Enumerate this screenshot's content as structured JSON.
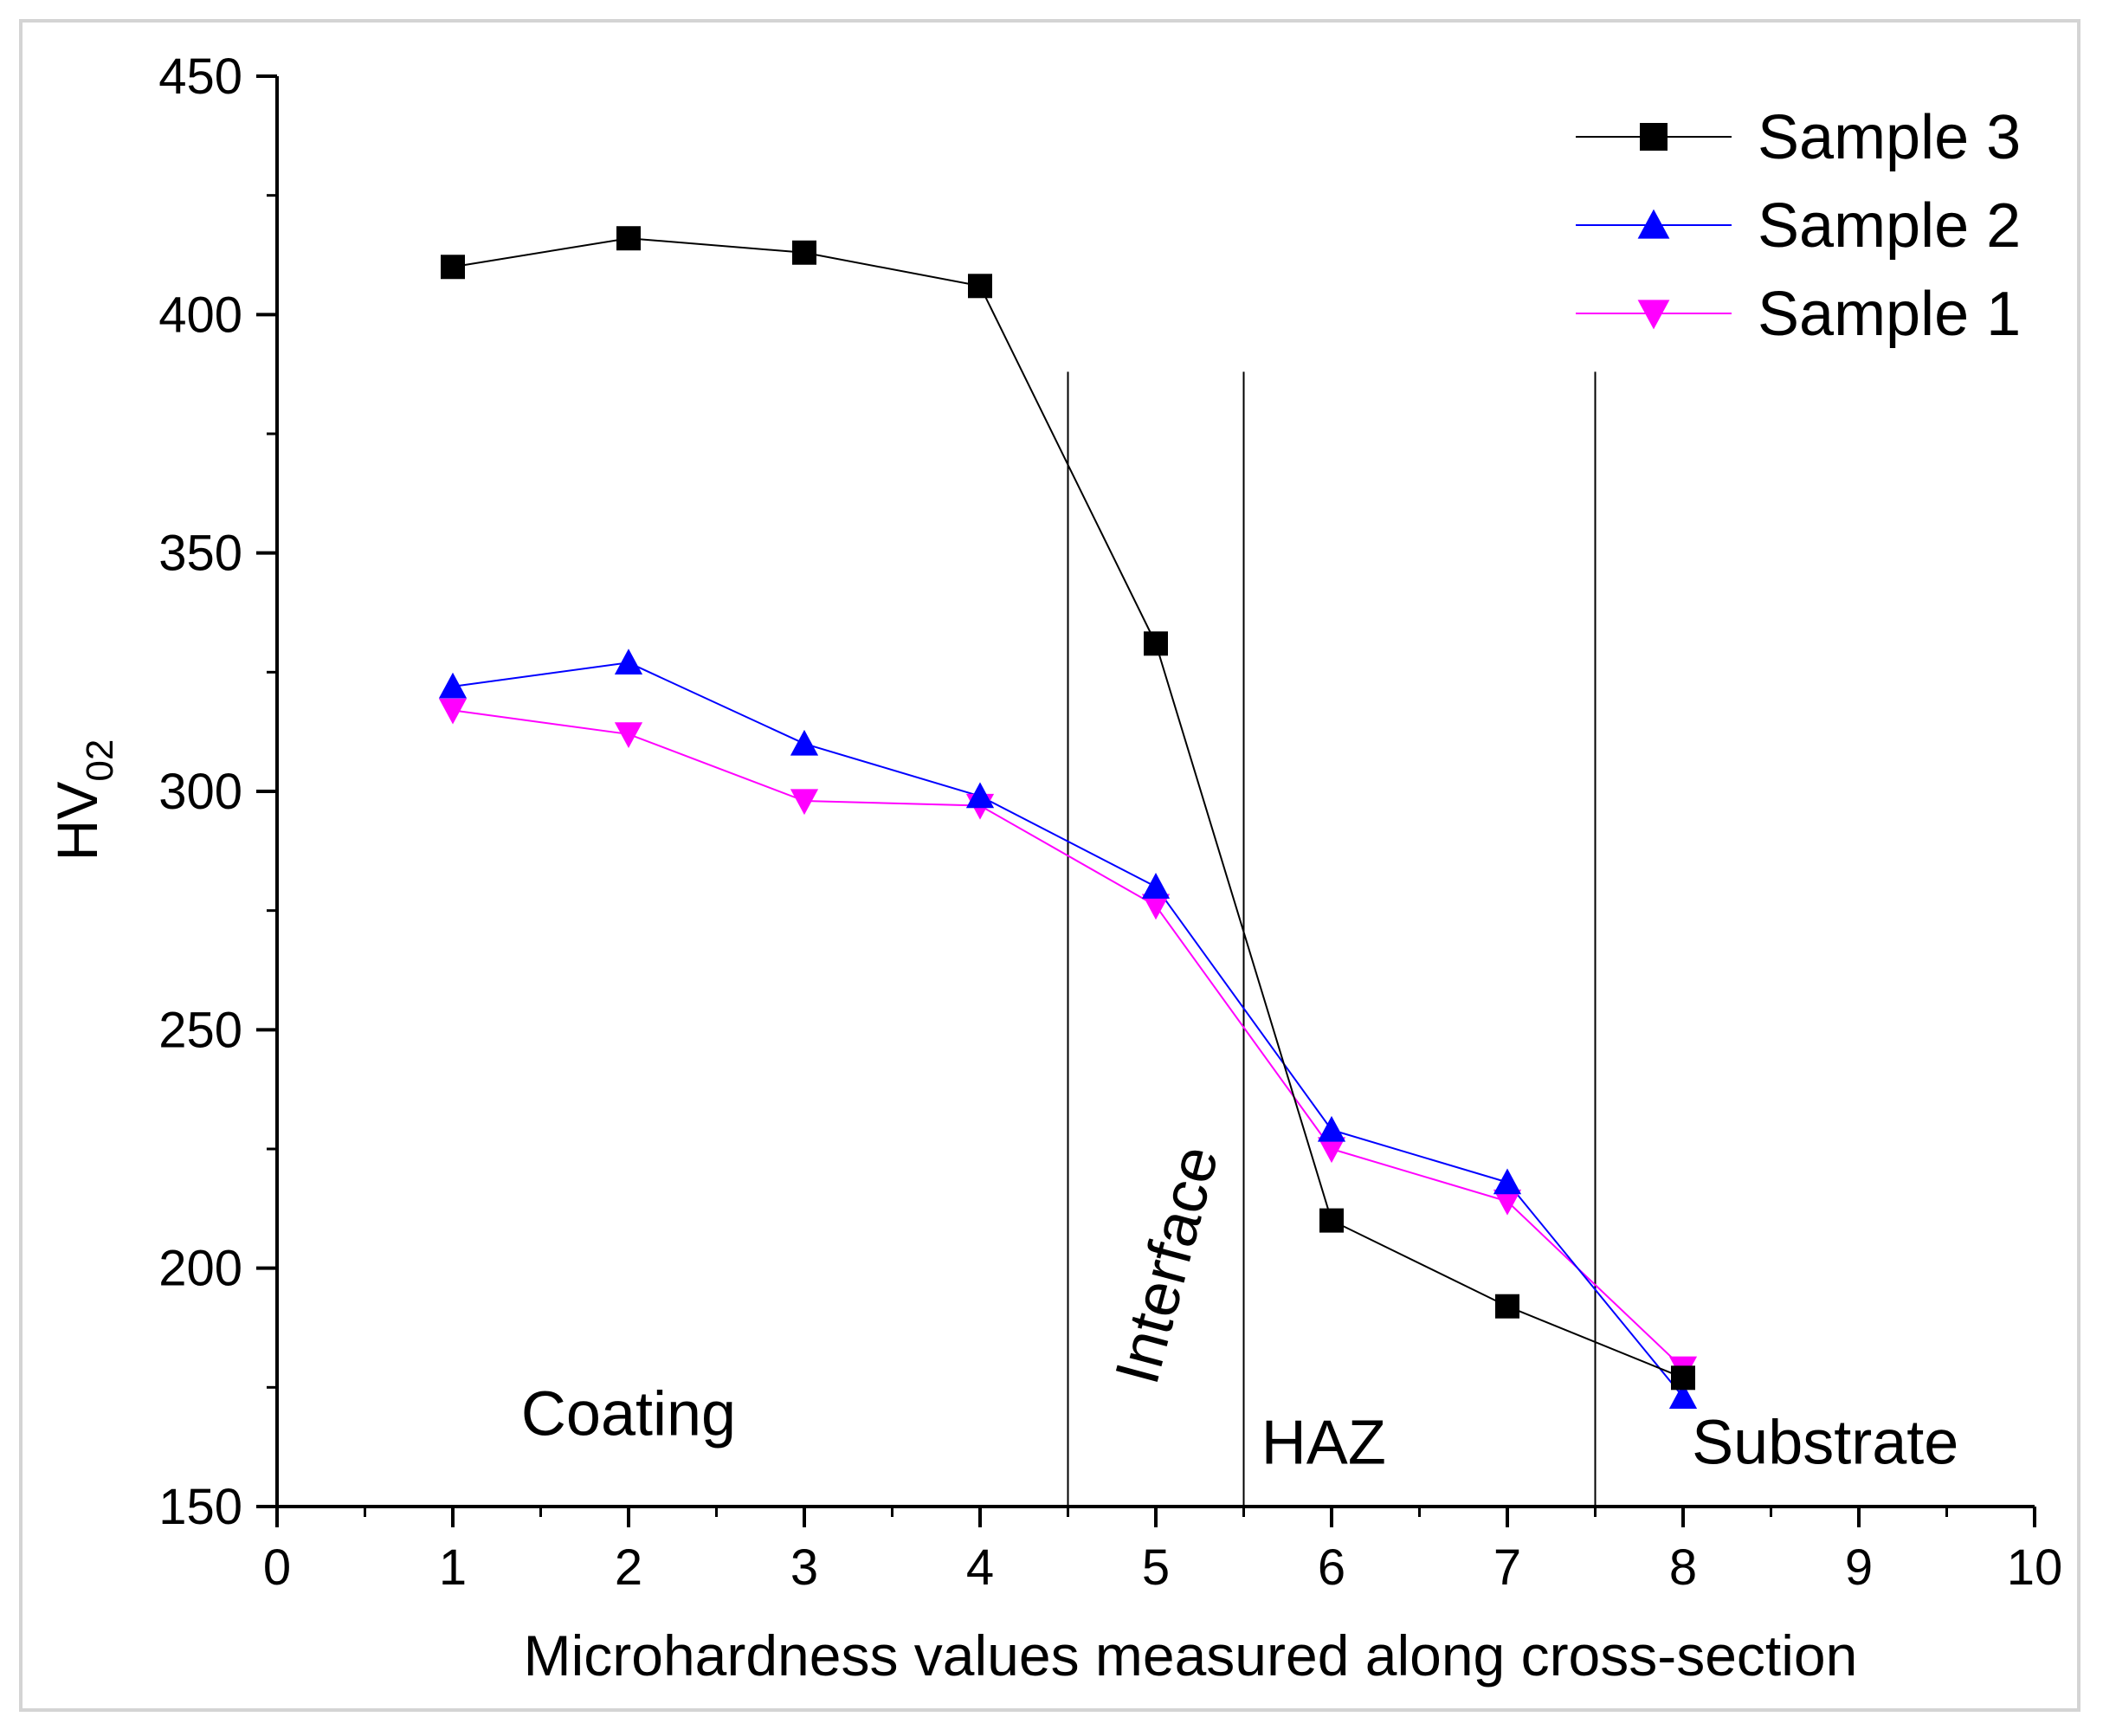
{
  "chart_data": {
    "type": "line",
    "title": "",
    "xlabel": "Microhardness values measured along cross-section",
    "ylabel": "HV",
    "ylabel_subscript": "02",
    "xlim": [
      0,
      10
    ],
    "ylim": [
      150,
      450
    ],
    "x_ticks": [
      0,
      1,
      2,
      3,
      4,
      5,
      6,
      7,
      8,
      9,
      10
    ],
    "x_tick_labels": [
      "0",
      "1",
      "2",
      "3",
      "4",
      "5",
      "6",
      "7",
      "8",
      "9",
      "10"
    ],
    "y_ticks": [
      150,
      200,
      250,
      300,
      350,
      400,
      450
    ],
    "y_tick_labels": [
      "150",
      "200",
      "250",
      "300",
      "350",
      "400",
      "450"
    ],
    "x_minor_step": 0.5,
    "y_minor_step": 25,
    "grid": false,
    "legend_position": "top-right",
    "series": [
      {
        "name": "Sample 3",
        "marker": "square",
        "color": "#000000",
        "x": [
          1,
          2,
          3,
          4,
          5,
          6,
          7,
          8
        ],
        "values": [
          410,
          416,
          413,
          406,
          331,
          210,
          192,
          177
        ]
      },
      {
        "name": "Sample 2",
        "marker": "triangle-up",
        "color": "#0000ff",
        "x": [
          1,
          2,
          3,
          4,
          5,
          6,
          7,
          8
        ],
        "values": [
          322,
          327,
          310,
          299,
          280,
          229,
          218,
          173
        ]
      },
      {
        "name": "Sample 1",
        "marker": "triangle-down",
        "color": "#ff00ff",
        "x": [
          1,
          2,
          3,
          4,
          5,
          6,
          7,
          8
        ],
        "values": [
          317,
          312,
          298,
          297,
          276,
          225,
          214,
          179
        ]
      }
    ],
    "vertical_lines": [
      {
        "x": 4.5,
        "y_top": 388
      },
      {
        "x": 5.5,
        "y_top": 388
      },
      {
        "x": 7.5,
        "y_top": 388
      }
    ],
    "annotations": [
      {
        "text": "Coating",
        "x": 2.0,
        "y": 165,
        "rotation": 0
      },
      {
        "text": "Interface",
        "x": 5.0,
        "y": 175,
        "rotation": -75
      },
      {
        "text": "HAZ",
        "x": 5.6,
        "y": 159,
        "rotation": 0
      },
      {
        "text": "Substrate",
        "x": 8.05,
        "y": 159,
        "rotation": 0
      }
    ]
  }
}
